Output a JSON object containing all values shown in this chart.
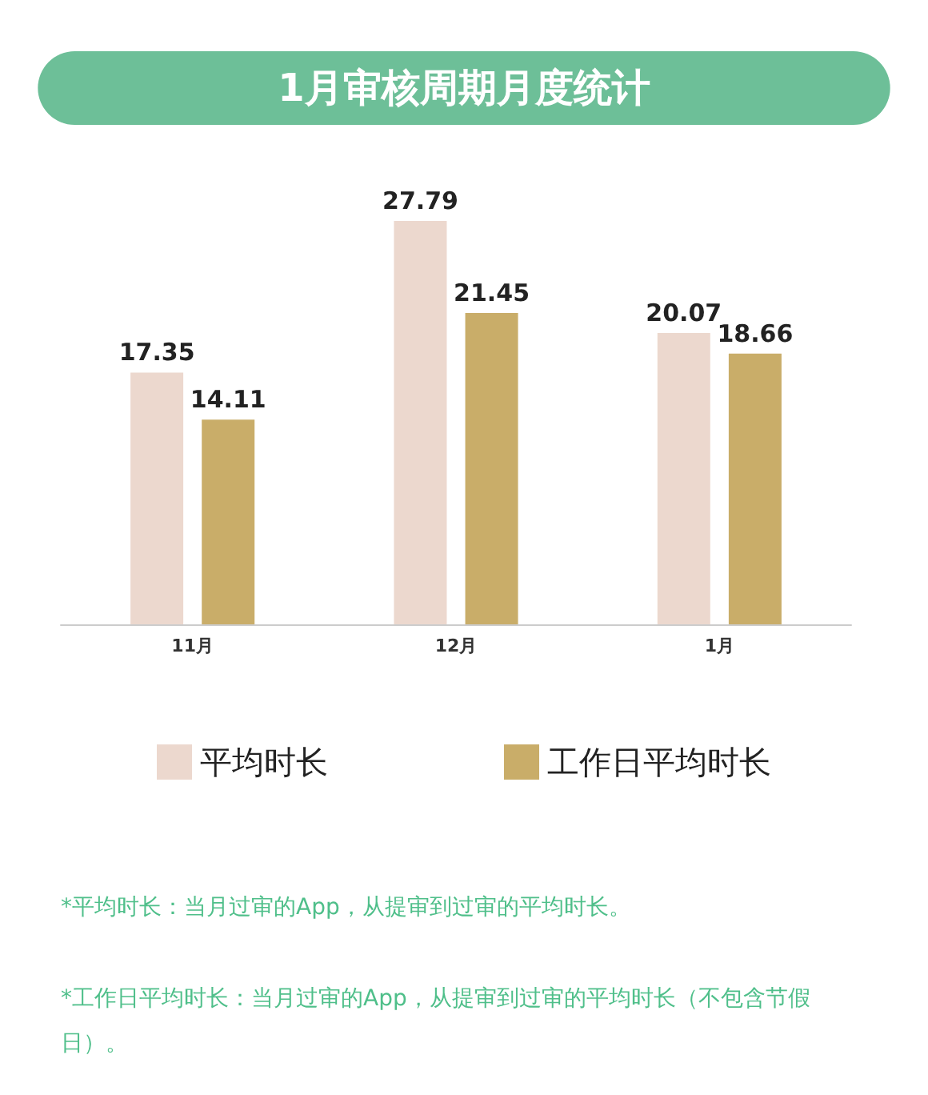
{
  "chart_data": {
    "type": "bar",
    "title": "1月审核周期月度统计",
    "categories": [
      "11月",
      "12月",
      "1月"
    ],
    "series": [
      {
        "name": "平均时长",
        "color": "#ecd8ce",
        "values": [
          17.35,
          27.79,
          20.07
        ]
      },
      {
        "name": "工作日平均时长",
        "color": "#c9ad69",
        "values": [
          14.11,
          21.45,
          18.66
        ]
      }
    ],
    "data_labels": true,
    "grid": false,
    "legend": "bottom",
    "annotations": [
      "*平均时长：当月过审的App，从提审到过审的平均时长。",
      "*工作日平均时长：当月过审的App，从提审到过审的平均时长（不包含节假日）。"
    ]
  }
}
